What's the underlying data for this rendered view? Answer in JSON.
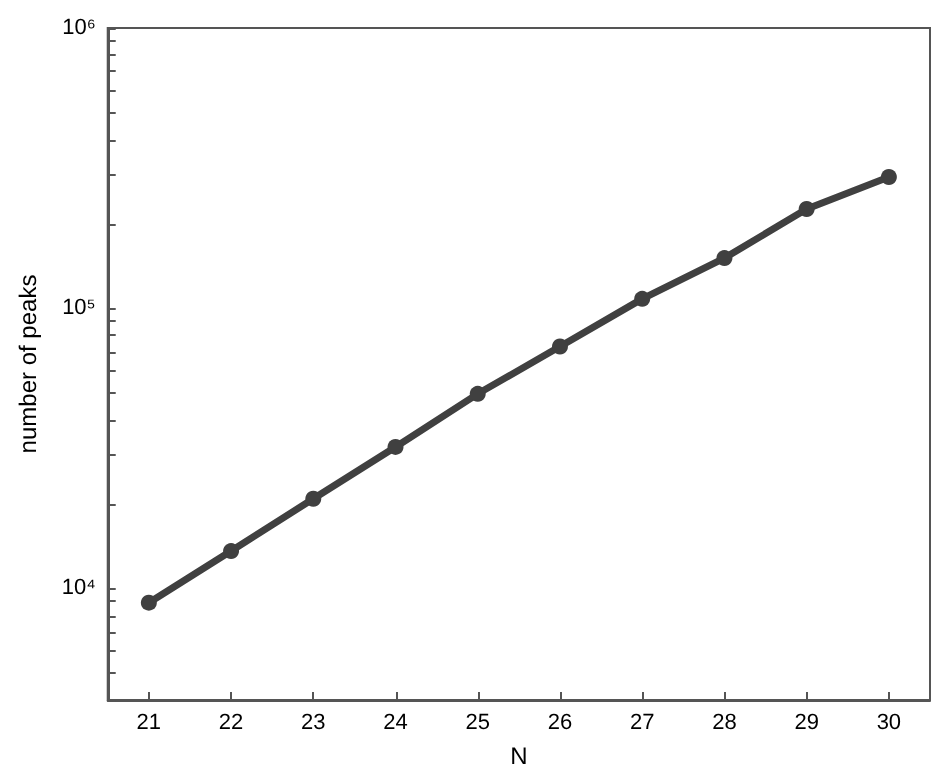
{
  "chart_data": {
    "type": "line",
    "xlabel": "N",
    "ylabel": "number of peaks",
    "x": [
      21,
      22,
      23,
      24,
      25,
      26,
      27,
      28,
      29,
      30
    ],
    "series": [
      {
        "color": "#404040",
        "values": [
          8900,
          13600,
          20900,
          32000,
          49500,
          73000,
          108000,
          151000,
          226000,
          294000
        ]
      }
    ],
    "xlim": [
      20.5,
      30.5
    ],
    "xticks": [
      21,
      22,
      23,
      24,
      25,
      26,
      27,
      28,
      29,
      30
    ],
    "ylim": [
      4000,
      1000000
    ],
    "yticks": [
      {
        "value": 4000,
        "label": null
      },
      {
        "value": 5000,
        "label": null
      },
      {
        "value": 6000,
        "label": null
      },
      {
        "value": 7000,
        "label": null
      },
      {
        "value": 8000,
        "label": null
      },
      {
        "value": 9000,
        "label": null
      },
      {
        "value": 10000,
        "label": "10⁴"
      },
      {
        "value": 20000,
        "label": null
      },
      {
        "value": 30000,
        "label": null
      },
      {
        "value": 40000,
        "label": null
      },
      {
        "value": 50000,
        "label": null
      },
      {
        "value": 60000,
        "label": null
      },
      {
        "value": 70000,
        "label": null
      },
      {
        "value": 80000,
        "label": null
      },
      {
        "value": 90000,
        "label": null
      },
      {
        "value": 100000,
        "label": "10⁵"
      },
      {
        "value": 200000,
        "label": null
      },
      {
        "value": 300000,
        "label": null
      },
      {
        "value": 400000,
        "label": null
      },
      {
        "value": 500000,
        "label": null
      },
      {
        "value": 600000,
        "label": null
      },
      {
        "value": 700000,
        "label": null
      },
      {
        "value": 800000,
        "label": null
      },
      {
        "value": 900000,
        "label": null
      },
      {
        "value": 1000000,
        "label": "10⁶"
      }
    ],
    "log": "y",
    "grid": false,
    "marker": "circle",
    "line_style": "solid"
  }
}
